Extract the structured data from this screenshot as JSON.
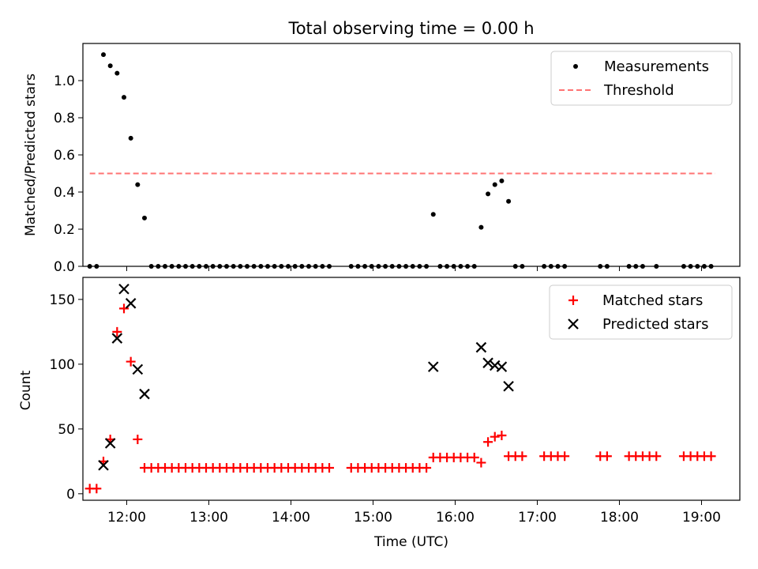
{
  "chart_data": [
    {
      "type": "scatter",
      "title": "Total observing time = 0.00 h",
      "xlabel": "",
      "ylabel": "Matched/Predicted stars",
      "xlim": [
        "11:28",
        "19:28"
      ],
      "ylim": [
        0,
        1.2
      ],
      "x_tick_labels": [
        "12:00",
        "13:00",
        "14:00",
        "15:00",
        "16:00",
        "17:00",
        "18:00",
        "19:00"
      ],
      "y_tick_labels": [
        "0.0",
        "0.2",
        "0.4",
        "0.6",
        "0.8",
        "1.0"
      ],
      "y_ticks": [
        0,
        0.2,
        0.4,
        0.6,
        0.8,
        1.0
      ],
      "legend": {
        "position": "top-right",
        "entries": [
          "Measurements",
          "Threshold"
        ]
      },
      "threshold": {
        "name": "Threshold",
        "value": 0.5,
        "x_start": "11:33",
        "x_end": "19:10",
        "color": "#ff7373"
      },
      "series": [
        {
          "name": "Measurements",
          "color": "#000000",
          "points": [
            [
              "11:33",
              0
            ],
            [
              "11:38",
              0
            ],
            [
              "11:43",
              1.14
            ],
            [
              "11:48",
              1.08
            ],
            [
              "11:53",
              1.04
            ],
            [
              "11:58",
              0.91
            ],
            [
              "12:03",
              0.69
            ],
            [
              "12:08",
              0.44
            ],
            [
              "12:13",
              0.26
            ],
            [
              "12:18",
              0
            ],
            [
              "12:23",
              0
            ],
            [
              "12:28",
              0
            ],
            [
              "12:33",
              0
            ],
            [
              "12:38",
              0
            ],
            [
              "12:43",
              0
            ],
            [
              "12:48",
              0
            ],
            [
              "12:53",
              0
            ],
            [
              "12:58",
              0
            ],
            [
              "13:03",
              0
            ],
            [
              "13:08",
              0
            ],
            [
              "13:13",
              0
            ],
            [
              "13:18",
              0
            ],
            [
              "13:23",
              0
            ],
            [
              "13:28",
              0
            ],
            [
              "13:33",
              0
            ],
            [
              "13:38",
              0
            ],
            [
              "13:43",
              0
            ],
            [
              "13:48",
              0
            ],
            [
              "13:53",
              0
            ],
            [
              "13:58",
              0
            ],
            [
              "14:03",
              0
            ],
            [
              "14:08",
              0
            ],
            [
              "14:13",
              0
            ],
            [
              "14:18",
              0
            ],
            [
              "14:23",
              0
            ],
            [
              "14:28",
              0
            ],
            [
              "14:44",
              0
            ],
            [
              "14:49",
              0
            ],
            [
              "14:54",
              0
            ],
            [
              "14:59",
              0
            ],
            [
              "15:04",
              0
            ],
            [
              "15:09",
              0
            ],
            [
              "15:14",
              0
            ],
            [
              "15:19",
              0
            ],
            [
              "15:24",
              0
            ],
            [
              "15:29",
              0
            ],
            [
              "15:34",
              0
            ],
            [
              "15:39",
              0
            ],
            [
              "15:44",
              0.28
            ],
            [
              "15:49",
              0
            ],
            [
              "15:54",
              0
            ],
            [
              "15:59",
              0
            ],
            [
              "16:04",
              0
            ],
            [
              "16:09",
              0
            ],
            [
              "16:14",
              0
            ],
            [
              "16:19",
              0.21
            ],
            [
              "16:24",
              0.39
            ],
            [
              "16:29",
              0.44
            ],
            [
              "16:34",
              0.46
            ],
            [
              "16:39",
              0.35
            ],
            [
              "16:44",
              0
            ],
            [
              "16:49",
              0
            ],
            [
              "17:05",
              0
            ],
            [
              "17:10",
              0
            ],
            [
              "17:15",
              0
            ],
            [
              "17:20",
              0
            ],
            [
              "17:46",
              0
            ],
            [
              "17:51",
              0
            ],
            [
              "18:07",
              0
            ],
            [
              "18:12",
              0
            ],
            [
              "18:17",
              0
            ],
            [
              "18:27",
              0
            ],
            [
              "18:47",
              0
            ],
            [
              "18:52",
              0
            ],
            [
              "18:57",
              0
            ],
            [
              "19:02",
              0
            ],
            [
              "19:07",
              0
            ]
          ]
        }
      ]
    },
    {
      "type": "scatter",
      "title": "",
      "xlabel": "Time (UTC)",
      "ylabel": "Count",
      "xlim": [
        "11:28",
        "19:28"
      ],
      "ylim": [
        -5,
        167
      ],
      "x_tick_labels": [
        "12:00",
        "13:00",
        "14:00",
        "15:00",
        "16:00",
        "17:00",
        "18:00",
        "19:00"
      ],
      "y_tick_labels": [
        "0",
        "50",
        "100",
        "150"
      ],
      "y_ticks": [
        0,
        50,
        100,
        150
      ],
      "legend": {
        "position": "top-right",
        "entries": [
          "Matched stars",
          "Predicted stars"
        ]
      },
      "series": [
        {
          "name": "Matched stars",
          "color": "#ff0000",
          "marker": "plus",
          "points": [
            [
              "11:33",
              4
            ],
            [
              "11:38",
              4
            ],
            [
              "11:43",
              25
            ],
            [
              "11:48",
              42
            ],
            [
              "11:53",
              125
            ],
            [
              "11:58",
              143
            ],
            [
              "12:03",
              102
            ],
            [
              "12:08",
              42
            ],
            [
              "12:13",
              20
            ],
            [
              "12:18",
              20
            ],
            [
              "12:23",
              20
            ],
            [
              "12:28",
              20
            ],
            [
              "12:33",
              20
            ],
            [
              "12:38",
              20
            ],
            [
              "12:43",
              20
            ],
            [
              "12:48",
              20
            ],
            [
              "12:53",
              20
            ],
            [
              "12:58",
              20
            ],
            [
              "13:03",
              20
            ],
            [
              "13:08",
              20
            ],
            [
              "13:13",
              20
            ],
            [
              "13:18",
              20
            ],
            [
              "13:23",
              20
            ],
            [
              "13:28",
              20
            ],
            [
              "13:33",
              20
            ],
            [
              "13:38",
              20
            ],
            [
              "13:43",
              20
            ],
            [
              "13:48",
              20
            ],
            [
              "13:53",
              20
            ],
            [
              "13:58",
              20
            ],
            [
              "14:03",
              20
            ],
            [
              "14:08",
              20
            ],
            [
              "14:13",
              20
            ],
            [
              "14:18",
              20
            ],
            [
              "14:23",
              20
            ],
            [
              "14:28",
              20
            ],
            [
              "14:44",
              20
            ],
            [
              "14:49",
              20
            ],
            [
              "14:54",
              20
            ],
            [
              "14:59",
              20
            ],
            [
              "15:04",
              20
            ],
            [
              "15:09",
              20
            ],
            [
              "15:14",
              20
            ],
            [
              "15:19",
              20
            ],
            [
              "15:24",
              20
            ],
            [
              "15:29",
              20
            ],
            [
              "15:34",
              20
            ],
            [
              "15:39",
              20
            ],
            [
              "15:44",
              28
            ],
            [
              "15:49",
              28
            ],
            [
              "15:54",
              28
            ],
            [
              "15:59",
              28
            ],
            [
              "16:04",
              28
            ],
            [
              "16:09",
              28
            ],
            [
              "16:14",
              28
            ],
            [
              "16:19",
              24
            ],
            [
              "16:24",
              40
            ],
            [
              "16:29",
              44
            ],
            [
              "16:34",
              45
            ],
            [
              "16:39",
              29
            ],
            [
              "16:44",
              29
            ],
            [
              "16:49",
              29
            ],
            [
              "17:05",
              29
            ],
            [
              "17:10",
              29
            ],
            [
              "17:15",
              29
            ],
            [
              "17:20",
              29
            ],
            [
              "17:46",
              29
            ],
            [
              "17:51",
              29
            ],
            [
              "18:07",
              29
            ],
            [
              "18:12",
              29
            ],
            [
              "18:17",
              29
            ],
            [
              "18:22",
              29
            ],
            [
              "18:27",
              29
            ],
            [
              "18:47",
              29
            ],
            [
              "18:52",
              29
            ],
            [
              "18:57",
              29
            ],
            [
              "19:02",
              29
            ],
            [
              "19:07",
              29
            ]
          ]
        },
        {
          "name": "Predicted stars",
          "color": "#000000",
          "marker": "x",
          "points": [
            [
              "11:43",
              22
            ],
            [
              "11:48",
              39
            ],
            [
              "11:53",
              120
            ],
            [
              "11:58",
              158
            ],
            [
              "12:03",
              147
            ],
            [
              "12:08",
              96
            ],
            [
              "12:13",
              77
            ],
            [
              "15:44",
              98
            ],
            [
              "16:19",
              113
            ],
            [
              "16:24",
              101
            ],
            [
              "16:29",
              99
            ],
            [
              "16:34",
              98
            ],
            [
              "16:39",
              83
            ]
          ]
        }
      ]
    }
  ]
}
